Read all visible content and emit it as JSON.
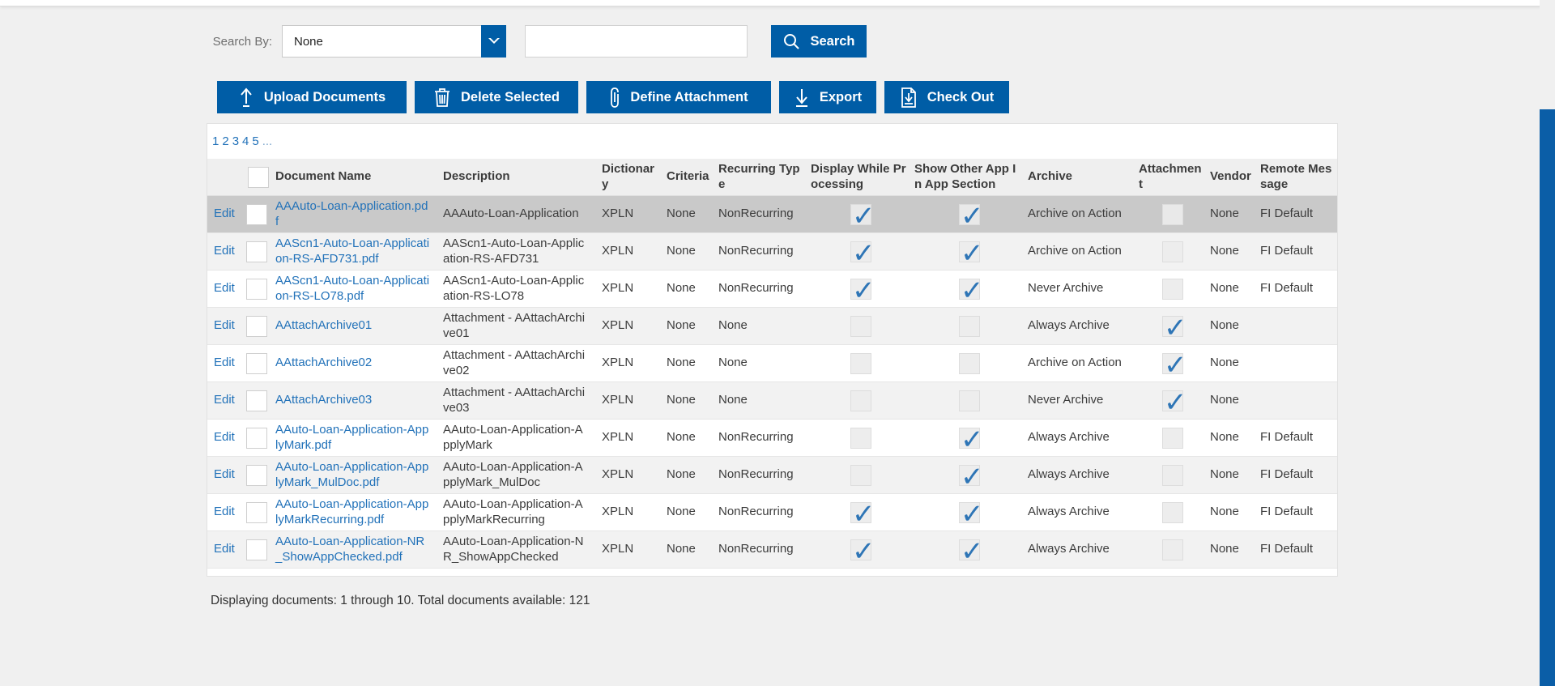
{
  "colors": {
    "accent_blue": "#005da6",
    "link_blue": "#2272b9",
    "check_blue": "#2e75b6",
    "selected_row": "#c9c9c9",
    "alt_row": "#f2f2f2",
    "page_bg": "#f0f0f0"
  },
  "search": {
    "label": "Search By:",
    "dropdown_value": "None",
    "dropdown_icon": "chevron-down-icon",
    "input_value": "",
    "button_label": "Search",
    "button_icon": "search-icon"
  },
  "toolbar": {
    "buttons": [
      {
        "label": "Upload Documents",
        "icon": "upload-icon"
      },
      {
        "label": "Delete Selected",
        "icon": "trash-icon"
      },
      {
        "label": "Define Attachment",
        "icon": "paperclip-icon"
      },
      {
        "label": "Export",
        "icon": "download-icon"
      },
      {
        "label": "Check Out",
        "icon": "checkout-document-icon"
      }
    ]
  },
  "pagination": {
    "pages": [
      "1",
      "2",
      "3",
      "4",
      "5"
    ],
    "ellipsis": "..."
  },
  "table": {
    "edit_label": "Edit",
    "headers": [
      "Document Name",
      "Description",
      "Dictionary",
      "Criteria",
      "Recurring Type",
      "Display While Processing",
      "Show Other App In App Section",
      "Archive",
      "Attachment",
      "Vendor",
      "Remote Message"
    ],
    "rows": [
      {
        "selected": true,
        "row_checked": false,
        "document_name": "AAAuto-Loan-Application.pdf",
        "description": "AAAuto-Loan-Application",
        "dictionary": "XPLN",
        "criteria": "None",
        "recurring_type": "NonRecurring",
        "display_while_processing": true,
        "show_other_app": true,
        "archive": "Archive on Action",
        "attachment": false,
        "vendor": "None",
        "remote_message": "FI Default"
      },
      {
        "selected": false,
        "row_checked": false,
        "document_name": "AAScn1-Auto-Loan-Application-RS-AFD731.pdf",
        "description": "AAScn1-Auto-Loan-Application-RS-AFD731",
        "dictionary": "XPLN",
        "criteria": "None",
        "recurring_type": "NonRecurring",
        "display_while_processing": true,
        "show_other_app": true,
        "archive": "Archive on Action",
        "attachment": false,
        "vendor": "None",
        "remote_message": "FI Default"
      },
      {
        "selected": false,
        "row_checked": false,
        "document_name": "AAScn1-Auto-Loan-Application-RS-LO78.pdf",
        "description": "AAScn1-Auto-Loan-Application-RS-LO78",
        "dictionary": "XPLN",
        "criteria": "None",
        "recurring_type": "NonRecurring",
        "display_while_processing": true,
        "show_other_app": true,
        "archive": "Never Archive",
        "attachment": false,
        "vendor": "None",
        "remote_message": "FI Default"
      },
      {
        "selected": false,
        "row_checked": false,
        "document_name": "AAttachArchive01",
        "description": "Attachment - AAttachArchive01",
        "dictionary": "XPLN",
        "criteria": "None",
        "recurring_type": "None",
        "display_while_processing": false,
        "show_other_app": false,
        "archive": "Always Archive",
        "attachment": true,
        "vendor": "None",
        "remote_message": ""
      },
      {
        "selected": false,
        "row_checked": false,
        "document_name": "AAttachArchive02",
        "description": "Attachment - AAttachArchive02",
        "dictionary": "XPLN",
        "criteria": "None",
        "recurring_type": "None",
        "display_while_processing": false,
        "show_other_app": false,
        "archive": "Archive on Action",
        "attachment": true,
        "vendor": "None",
        "remote_message": ""
      },
      {
        "selected": false,
        "row_checked": false,
        "document_name": "AAttachArchive03",
        "description": "Attachment - AAttachArchive03",
        "dictionary": "XPLN",
        "criteria": "None",
        "recurring_type": "None",
        "display_while_processing": false,
        "show_other_app": false,
        "archive": "Never Archive",
        "attachment": true,
        "vendor": "None",
        "remote_message": ""
      },
      {
        "selected": false,
        "row_checked": false,
        "document_name": "AAuto-Loan-Application-ApplyMark.pdf",
        "description": "AAuto-Loan-Application-ApplyMark",
        "dictionary": "XPLN",
        "criteria": "None",
        "recurring_type": "NonRecurring",
        "display_while_processing": false,
        "show_other_app": true,
        "archive": "Always Archive",
        "attachment": false,
        "vendor": "None",
        "remote_message": "FI Default"
      },
      {
        "selected": false,
        "row_checked": false,
        "document_name": "AAuto-Loan-Application-ApplyMark_MulDoc.pdf",
        "description": "AAuto-Loan-Application-ApplyMark_MulDoc",
        "dictionary": "XPLN",
        "criteria": "None",
        "recurring_type": "NonRecurring",
        "display_while_processing": false,
        "show_other_app": true,
        "archive": "Always Archive",
        "attachment": false,
        "vendor": "None",
        "remote_message": "FI Default"
      },
      {
        "selected": false,
        "row_checked": false,
        "document_name": "AAuto-Loan-Application-ApplyMarkRecurring.pdf",
        "description": "AAuto-Loan-Application-ApplyMarkRecurring",
        "dictionary": "XPLN",
        "criteria": "None",
        "recurring_type": "NonRecurring",
        "display_while_processing": true,
        "show_other_app": true,
        "archive": "Always Archive",
        "attachment": false,
        "vendor": "None",
        "remote_message": "FI Default"
      },
      {
        "selected": false,
        "row_checked": false,
        "document_name": "AAuto-Loan-Application-NR_ShowAppChecked.pdf",
        "description": "AAuto-Loan-Application-NR_ShowAppChecked",
        "dictionary": "XPLN",
        "criteria": "None",
        "recurring_type": "NonRecurring",
        "display_while_processing": true,
        "show_other_app": true,
        "archive": "Always Archive",
        "attachment": false,
        "vendor": "None",
        "remote_message": "FI Default"
      }
    ]
  },
  "footer": {
    "summary": "Displaying documents: 1 through 10. Total documents available: 121"
  }
}
